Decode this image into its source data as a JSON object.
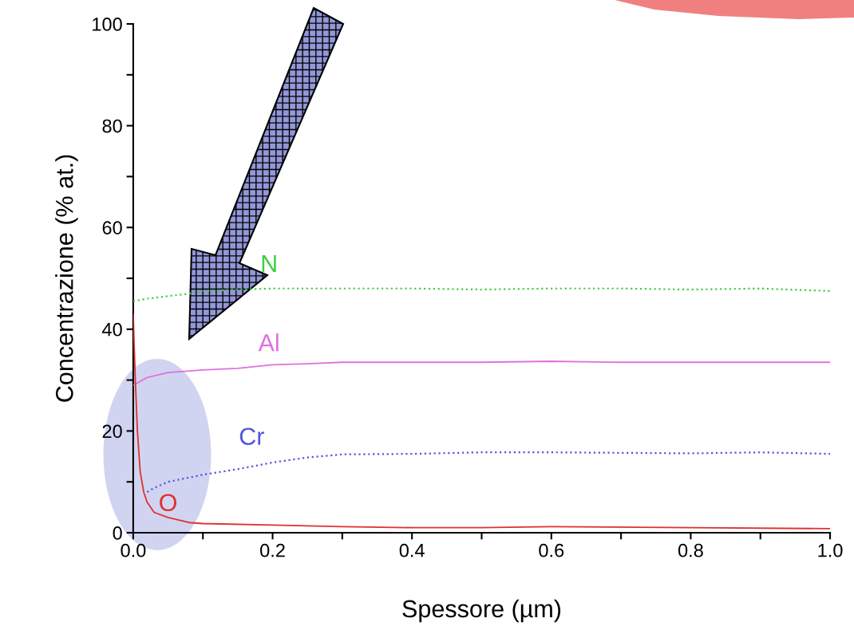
{
  "chart_data": {
    "type": "line",
    "xlabel": "Spessore (µm)",
    "ylabel": "Concentrazione (% at.)",
    "xlim": [
      0,
      1.0
    ],
    "ylim": [
      0,
      100
    ],
    "xticks": [
      {
        "value": 0,
        "label": "0.0"
      },
      {
        "value": 0.1,
        "label": null
      },
      {
        "value": 0.2,
        "label": "0.2"
      },
      {
        "value": 0.3,
        "label": null
      },
      {
        "value": 0.4,
        "label": "0.4"
      },
      {
        "value": 0.5,
        "label": null
      },
      {
        "value": 0.6,
        "label": "0.6"
      },
      {
        "value": 0.7,
        "label": null
      },
      {
        "value": 0.8,
        "label": "0.8"
      },
      {
        "value": 0.9,
        "label": null
      },
      {
        "value": 1.0,
        "label": "1.0"
      }
    ],
    "yticks": [
      0,
      {
        "value": 10,
        "label": null
      },
      20,
      {
        "value": 30,
        "label": null
      },
      40,
      {
        "value": 50,
        "label": null
      },
      60,
      {
        "value": 70,
        "label": null
      },
      80,
      {
        "value": 90,
        "label": null
      },
      100
    ],
    "grid": false,
    "legend": false,
    "series": [
      {
        "name": "N",
        "color": "#44cc44",
        "line_style": "dotted",
        "x": [
          0,
          0.02,
          0.05,
          0.08,
          0.1,
          0.15,
          0.2,
          0.3,
          0.4,
          0.5,
          0.6,
          0.7,
          0.8,
          0.9,
          1.0
        ],
        "values": [
          45.5,
          46,
          46.5,
          47,
          47.5,
          47.8,
          48,
          48,
          48,
          47.8,
          48,
          48,
          47.8,
          48,
          47.5
        ]
      },
      {
        "name": "Al",
        "color": "#e070e0",
        "line_style": "solid",
        "x": [
          0,
          0.02,
          0.05,
          0.1,
          0.15,
          0.2,
          0.25,
          0.3,
          0.4,
          0.5,
          0.6,
          0.7,
          0.8,
          0.9,
          1.0
        ],
        "values": [
          29,
          30.5,
          31.5,
          32,
          32.3,
          33,
          33.2,
          33.5,
          33.5,
          33.5,
          33.7,
          33.5,
          33.5,
          33.5,
          33.5
        ]
      },
      {
        "name": "Cr",
        "color": "#5555dd",
        "line_style": "dotted",
        "x": [
          0.02,
          0.03,
          0.05,
          0.1,
          0.15,
          0.2,
          0.25,
          0.3,
          0.4,
          0.5,
          0.6,
          0.7,
          0.8,
          0.9,
          1.0
        ],
        "values": [
          8,
          8.8,
          10,
          11.4,
          12.5,
          13.8,
          14.8,
          15.4,
          15.5,
          15.8,
          15.8,
          15.7,
          15.6,
          15.8,
          15.5
        ]
      },
      {
        "name": "O",
        "color": "#e03030",
        "line_style": "solid",
        "x": [
          0,
          0.003,
          0.006,
          0.01,
          0.015,
          0.02,
          0.03,
          0.05,
          0.08,
          0.1,
          0.2,
          0.3,
          0.4,
          0.5,
          0.6,
          0.8,
          1.0
        ],
        "values": [
          43,
          30,
          20,
          12,
          8,
          6,
          4,
          3,
          2,
          1.8,
          1.5,
          1.2,
          1,
          1,
          1.2,
          1,
          0.8
        ]
      }
    ]
  }
}
